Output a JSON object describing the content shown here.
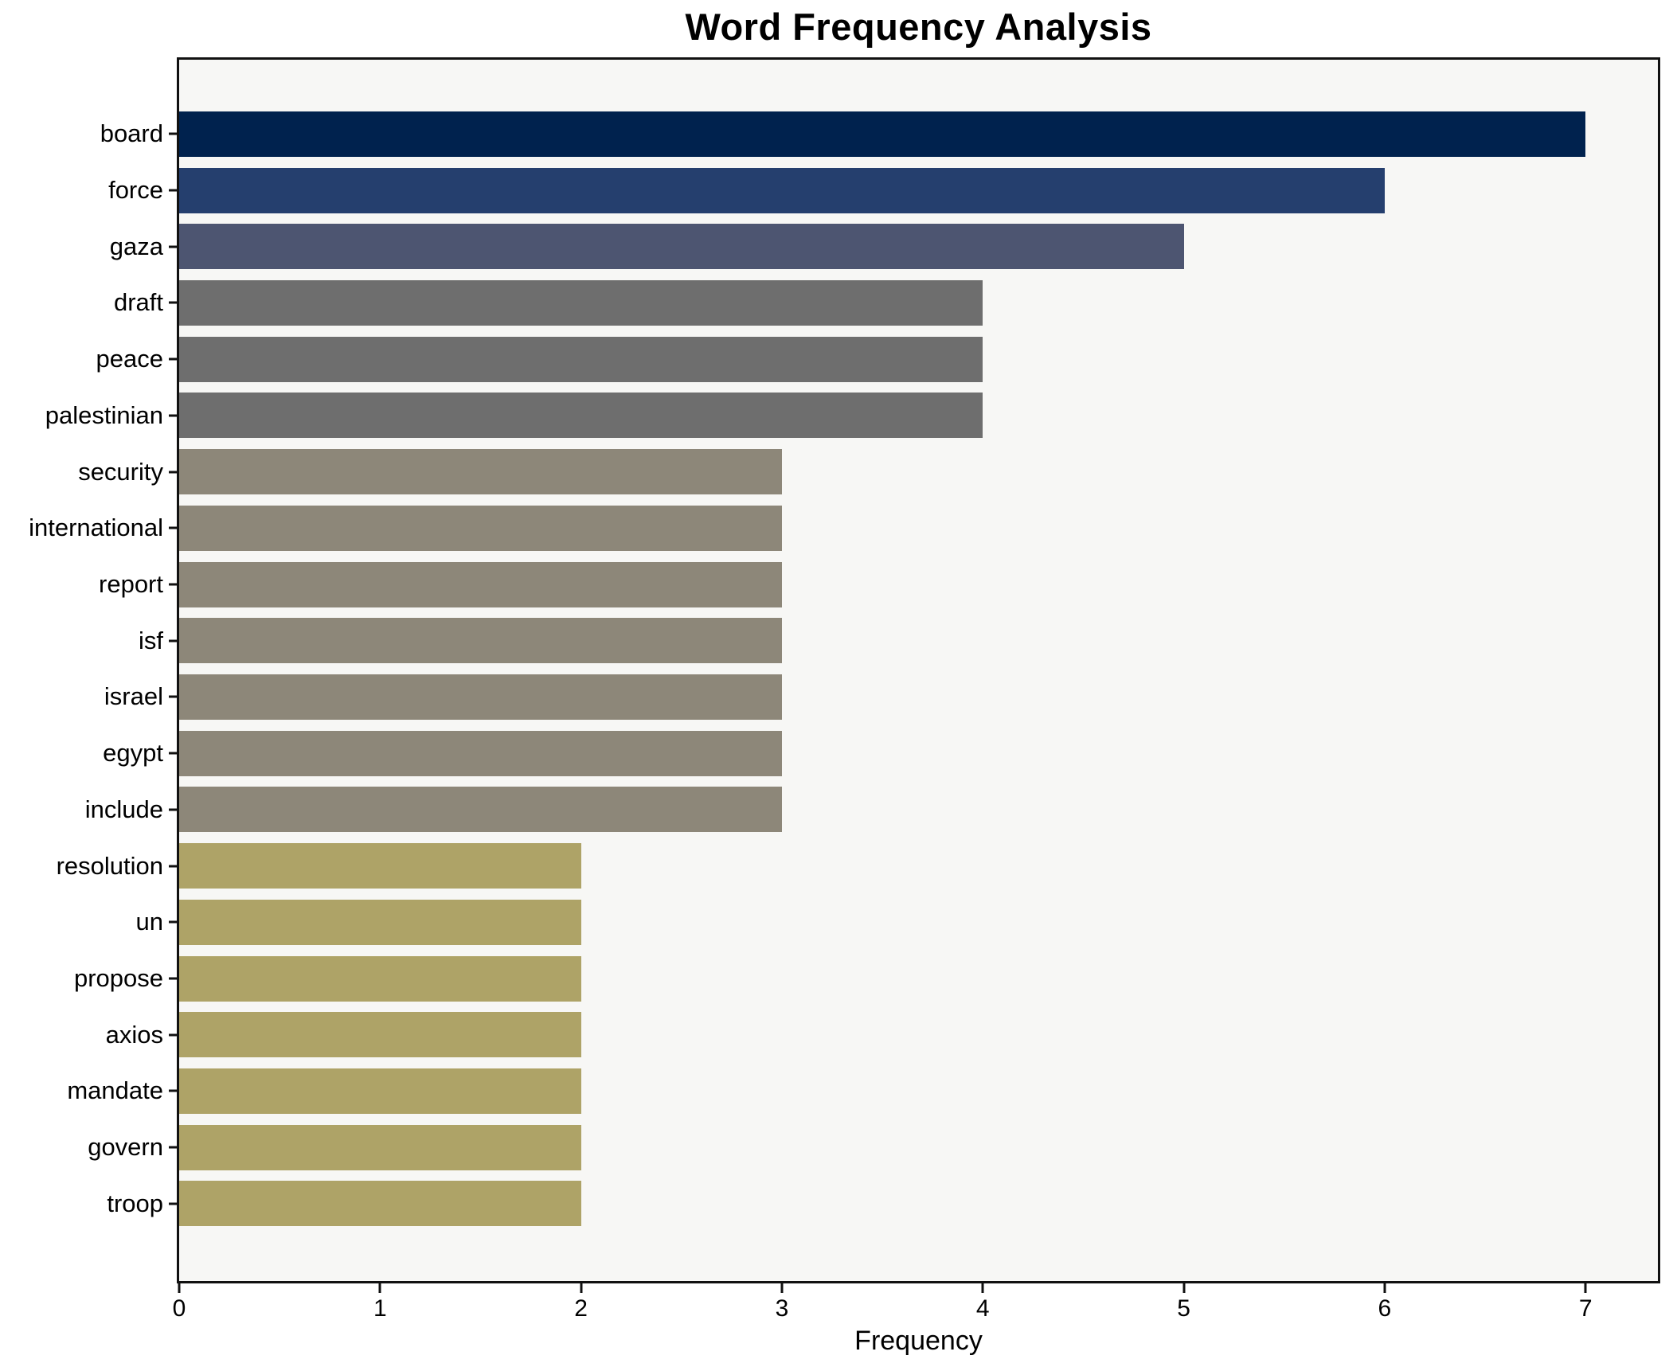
{
  "chart_data": {
    "type": "bar",
    "orientation": "horizontal",
    "title": "Word Frequency Analysis",
    "xlabel": "Frequency",
    "ylabel": "",
    "categories": [
      "board",
      "force",
      "gaza",
      "draft",
      "peace",
      "palestinian",
      "security",
      "international",
      "report",
      "isf",
      "israel",
      "egypt",
      "include",
      "resolution",
      "un",
      "propose",
      "axios",
      "mandate",
      "govern",
      "troop"
    ],
    "values": [
      7,
      6,
      5,
      4,
      4,
      4,
      3,
      3,
      3,
      3,
      3,
      3,
      3,
      2,
      2,
      2,
      2,
      2,
      2,
      2
    ],
    "bar_colors": [
      "#00224e",
      "#253f6e",
      "#4d5571",
      "#6e6e6e",
      "#6e6e6e",
      "#6e6e6e",
      "#8d8779",
      "#8d8779",
      "#8d8779",
      "#8d8779",
      "#8d8779",
      "#8d8779",
      "#8d8779",
      "#aea367",
      "#aea367",
      "#aea367",
      "#aea367",
      "#aea367",
      "#aea367",
      "#aea367"
    ],
    "x_ticks": [
      0,
      1,
      2,
      3,
      4,
      5,
      6,
      7
    ],
    "xlim": [
      0,
      7.36
    ],
    "grid": false,
    "legend": null,
    "plot_background": "#f7f7f5",
    "figure_background": "#ffffff",
    "spine_color": "#111111",
    "text_color": "#000000"
  }
}
